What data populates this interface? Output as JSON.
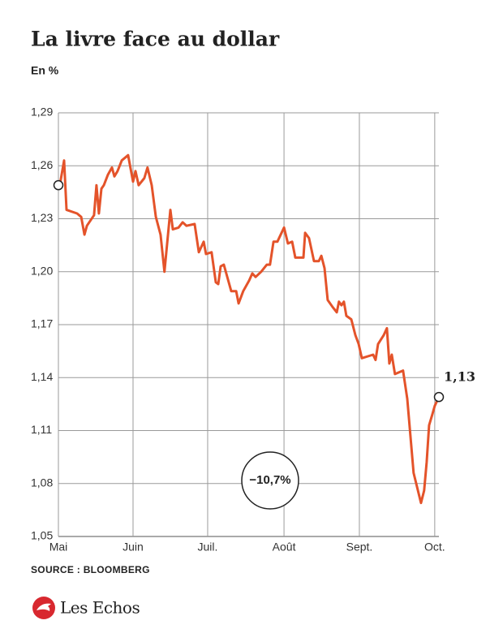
{
  "chart_data": {
    "type": "line",
    "title": "La livre face au dollar",
    "subtitle": "En %",
    "source": "SOURCE : BLOOMBERG",
    "brand": "Les Echos",
    "annotations": [
      "1,13",
      "−10,7%"
    ],
    "xlim": [
      0,
      155
    ],
    "xticks": [
      {
        "value": 0,
        "label": "Mai"
      },
      {
        "value": 30.4,
        "label": "Juin"
      },
      {
        "value": 60.8,
        "label": "Juil."
      },
      {
        "value": 91.9,
        "label": "Août"
      },
      {
        "value": 122.6,
        "label": "Sept."
      },
      {
        "value": 153.3,
        "label": "Oct."
      }
    ],
    "ylim": [
      1.05,
      1.29
    ],
    "yticks": [
      {
        "value": 1.05,
        "label": "1,05"
      },
      {
        "value": 1.08,
        "label": "1,08"
      },
      {
        "value": 1.11,
        "label": "1,11"
      },
      {
        "value": 1.14,
        "label": "1,14"
      },
      {
        "value": 1.17,
        "label": "1,17"
      },
      {
        "value": 1.2,
        "label": "1,20"
      },
      {
        "value": 1.23,
        "label": "1,23"
      },
      {
        "value": 1.26,
        "label": "1,26"
      },
      {
        "value": 1.29,
        "label": "1,29"
      }
    ],
    "grid": true,
    "color": "#e4532a",
    "x": [
      0,
      0.7,
      2.3,
      3.3,
      7.6,
      9.3,
      10.6,
      11.6,
      14.5,
      15.5,
      16.5,
      17.5,
      18.5,
      20.2,
      21.8,
      22.8,
      24.1,
      25.8,
      28.4,
      30.4,
      31.4,
      32.7,
      35.0,
      36.3,
      38.0,
      39.7,
      41.6,
      43.2,
      45.6,
      46.6,
      48.9,
      50.6,
      52.2,
      55.5,
      57.2,
      59.2,
      60.1,
      62.4,
      64.1,
      65.1,
      66.1,
      67.4,
      70.4,
      72.4,
      73.4,
      75.3,
      77.7,
      79.0,
      80.3,
      82.6,
      84.9,
      86.2,
      87.6,
      89.2,
      91.9,
      93.5,
      95.2,
      96.5,
      99.8,
      100.5,
      102.1,
      104.1,
      106.1,
      107.1,
      108.4,
      109.7,
      111.7,
      113.4,
      114.3,
      115.3,
      116.3,
      117.3,
      119.3,
      121.0,
      122.3,
      123.6,
      128.2,
      129.2,
      130.2,
      132.5,
      133.8,
      134.8,
      135.8,
      137.1,
      140.4,
      142.1,
      144.7,
      146.1,
      147.7,
      149.0,
      150.0,
      151.0,
      152.3,
      153.3,
      155.0
    ],
    "values": [
      1.249,
      1.25,
      1.263,
      1.235,
      1.233,
      1.231,
      1.221,
      1.226,
      1.232,
      1.249,
      1.233,
      1.247,
      1.249,
      1.255,
      1.259,
      1.254,
      1.257,
      1.263,
      1.266,
      1.251,
      1.257,
      1.249,
      1.253,
      1.259,
      1.249,
      1.231,
      1.221,
      1.2,
      1.235,
      1.224,
      1.225,
      1.228,
      1.226,
      1.227,
      1.211,
      1.217,
      1.21,
      1.211,
      1.194,
      1.193,
      1.203,
      1.204,
      1.189,
      1.189,
      1.182,
      1.189,
      1.195,
      1.199,
      1.197,
      1.2,
      1.204,
      1.204,
      1.217,
      1.217,
      1.225,
      1.216,
      1.217,
      1.208,
      1.208,
      1.222,
      1.219,
      1.206,
      1.206,
      1.209,
      1.202,
      1.184,
      1.18,
      1.177,
      1.183,
      1.181,
      1.183,
      1.175,
      1.173,
      1.164,
      1.159,
      1.151,
      1.153,
      1.15,
      1.159,
      1.164,
      1.168,
      1.148,
      1.153,
      1.142,
      1.144,
      1.128,
      1.086,
      1.078,
      1.069,
      1.076,
      1.092,
      1.113,
      1.119,
      1.124,
      1.129
    ]
  }
}
